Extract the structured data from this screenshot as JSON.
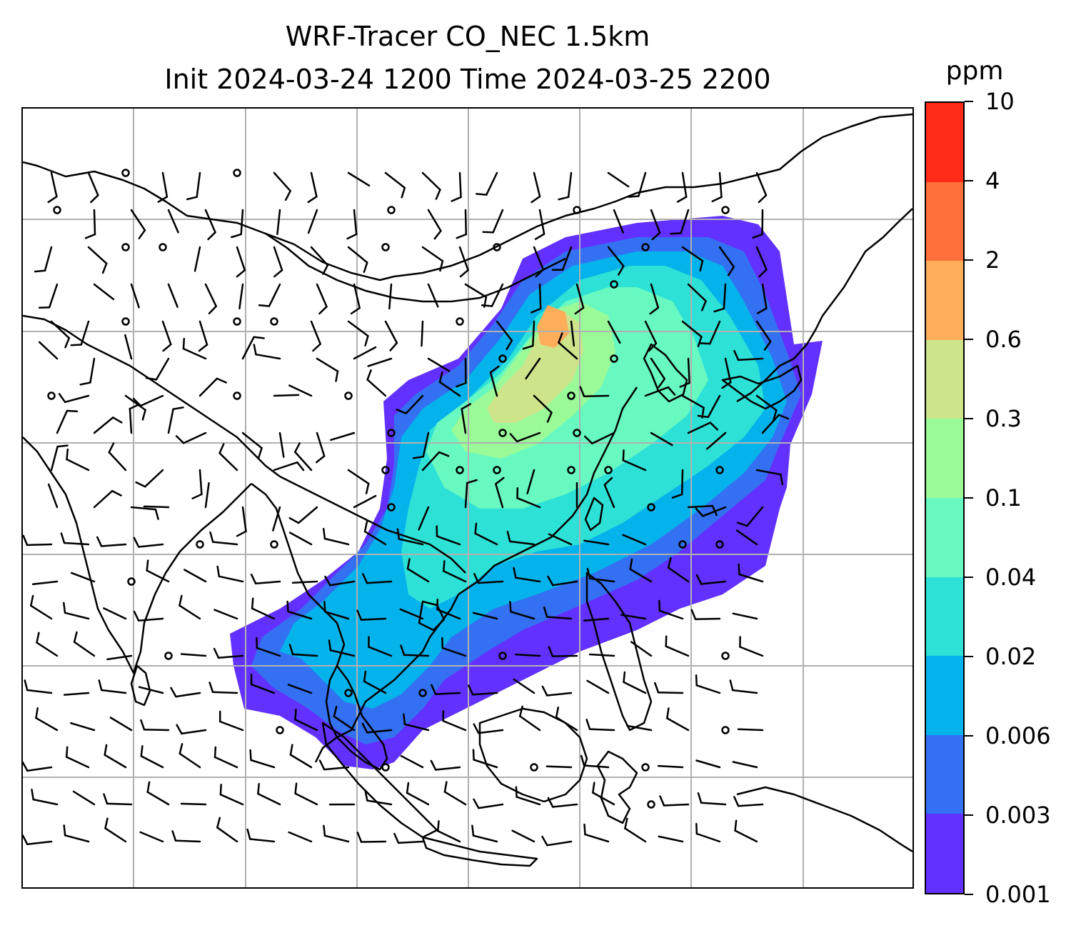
{
  "figure": {
    "title_line_1": "WRF-Tracer CO_NEC 1.5km",
    "title_line_2": "Init 2024-03-24 1200 Time 2024-03-25 2200"
  },
  "colorbar": {
    "unit": "ppm",
    "tick_labels": [
      "0.001",
      "0.003",
      "0.006",
      "0.02",
      "0.04",
      "0.1",
      "0.3",
      "0.6",
      "2",
      "4",
      "10"
    ],
    "colors": [
      "#6331ff",
      "#3371f2",
      "#04b3eb",
      "#2de1d6",
      "#68f9c0",
      "#9afa98",
      "#cde48b",
      "#fead5b",
      "#ff6f3a",
      "#ff2b17"
    ]
  },
  "map": {
    "gridline_color": "#b0b0b0",
    "coastline_color": "#000000",
    "wind_barb_color": "#000000",
    "field": "CO_NEC tracer concentration",
    "overlay": "wind barbs"
  }
}
